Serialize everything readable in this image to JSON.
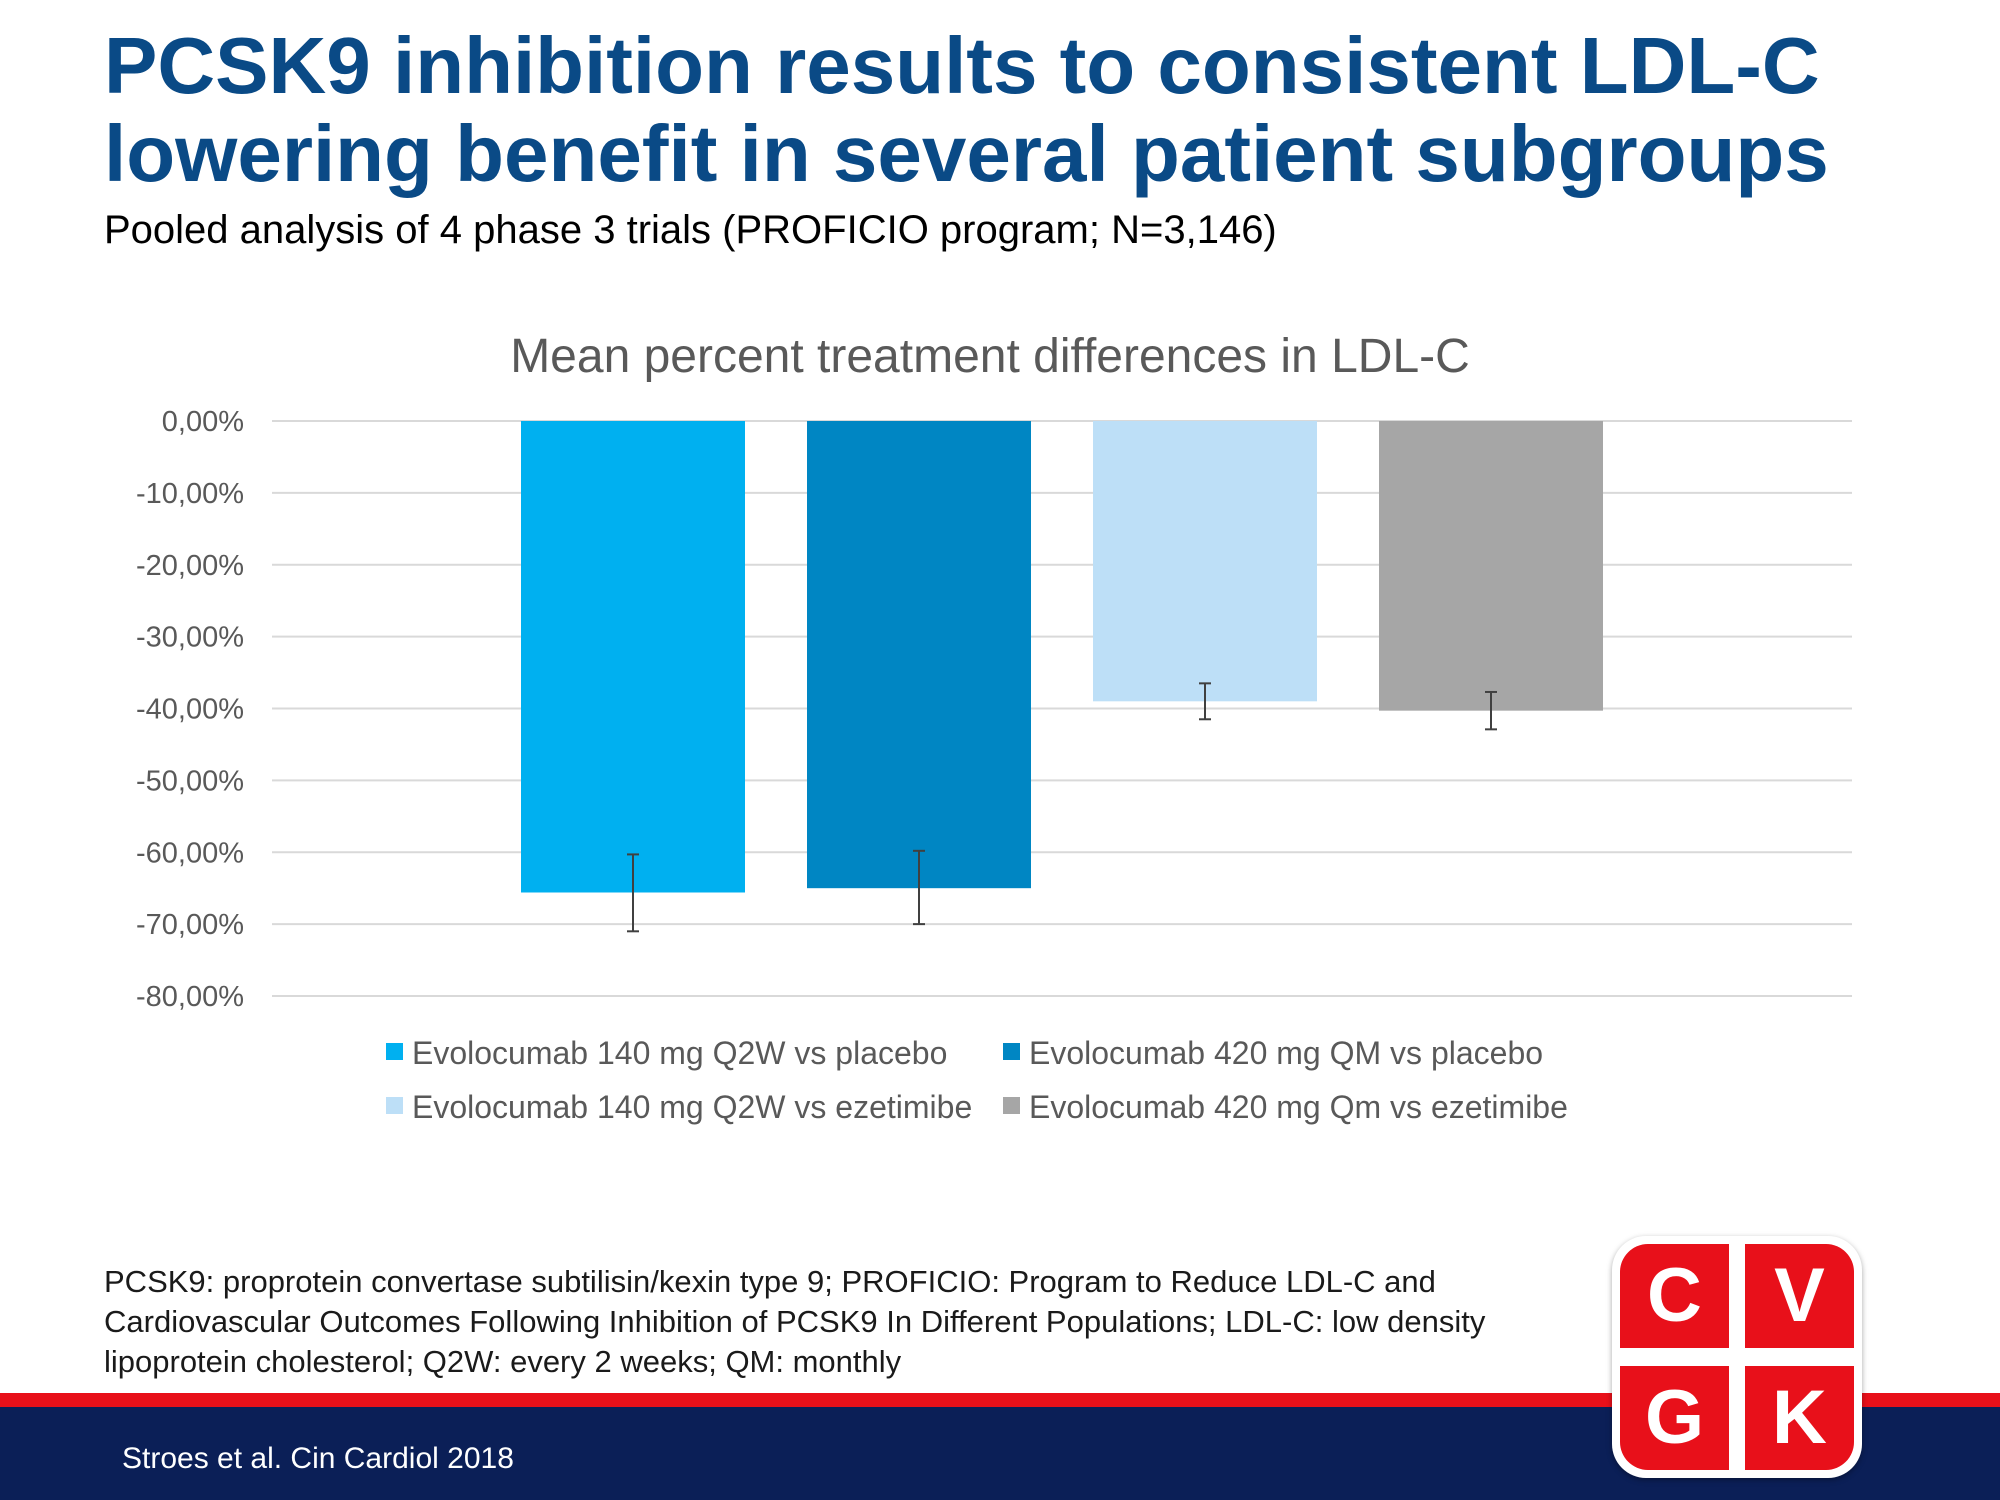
{
  "slide": {
    "title_line1": "PCSK9 inhibition results to consistent LDL-C",
    "title_line2": "lowering benefit in several patient subgroups",
    "subtitle": "Pooled analysis of 4 phase 3 trials (PROFICIO program;  N=3,146)",
    "footnote_line1": "PCSK9: proprotein convertase subtilisin/kexin type 9; PROFICIO:  Program to Reduce LDL-C and",
    "footnote_line2": "Cardiovascular Outcomes Following Inhibition of  PCSK9 In Different Populations;  LDL-C: low density",
    "footnote_line3": "lipoprotein cholesterol;  Q2W: every 2 weeks; QM: monthly",
    "citation": "Stroes et al. Cin Cardiol 2018"
  },
  "logo": {
    "letters": [
      "C",
      "V",
      "G",
      "K"
    ],
    "color": "#e8101a"
  },
  "colors": {
    "title": "#0a4a86",
    "footer_band": "#0b1f57",
    "stripe": "#e8101a"
  },
  "chart_data": {
    "type": "bar",
    "title": "Mean percent treatment differences in LDL-C",
    "ylim": [
      -80,
      0
    ],
    "yticks": [
      0,
      -10,
      -20,
      -30,
      -40,
      -50,
      -60,
      -70,
      -80
    ],
    "ytick_labels": [
      "0,00%",
      "-10,00%",
      "-20,00%",
      "-30,00%",
      "-40,00%",
      "-50,00%",
      "-60,00%",
      "-70,00%",
      "-80,00%"
    ],
    "grid": true,
    "legend_position": "bottom",
    "series": [
      {
        "name": "Evolocumab 140 mg Q2W vs placebo",
        "value": -65.6,
        "error_low": -71.0,
        "error_high": -60.3,
        "color": "#00b0f0"
      },
      {
        "name": "Evolocumab 420 mg QM vs placebo",
        "value": -65.0,
        "error_low": -70.0,
        "error_high": -59.8,
        "color": "#0086c3"
      },
      {
        "name": "Evolocumab 140 mg Q2W vs ezetimibe",
        "value": -39.0,
        "error_low": -41.5,
        "error_high": -36.5,
        "color": "#bddff7"
      },
      {
        "name": "Evolocumab 420 mg Qm vs ezetimibe",
        "value": -40.3,
        "error_low": -42.9,
        "error_high": -37.7,
        "color": "#a6a6a6"
      }
    ]
  }
}
